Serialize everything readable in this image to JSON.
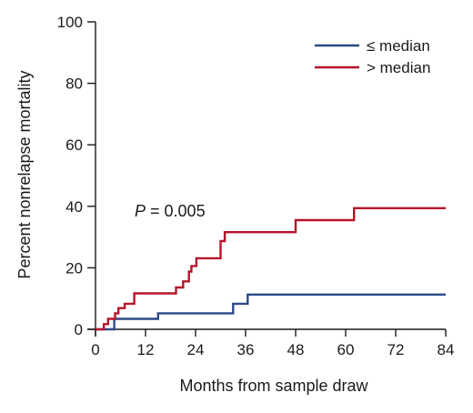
{
  "chart_data": {
    "type": "line",
    "step": true,
    "xlabel": "Months from sample draw",
    "ylabel": "Percent nonrelapse mortality",
    "xlim": [
      0,
      84
    ],
    "ylim": [
      0,
      100
    ],
    "xticks": [
      0,
      12,
      24,
      36,
      48,
      60,
      72,
      84
    ],
    "yticks": [
      0,
      20,
      40,
      60,
      80,
      100
    ],
    "grid": false,
    "legend_position": "top-right",
    "annotation": {
      "italic": "P",
      "rest": " = 0.005"
    },
    "series": [
      {
        "name": "≤ median",
        "color": "#2b4a86",
        "x": [
          0,
          4,
          4.5,
          15,
          33,
          36.5,
          84
        ],
        "y": [
          0,
          0,
          3.4,
          5.2,
          8.3,
          11.3,
          11.3
        ]
      },
      {
        "name": "> median",
        "color": "#b5152b",
        "x": [
          0,
          2,
          3,
          4.7,
          5.5,
          7,
          9.3,
          19.3,
          21,
          22.4,
          23,
          24.2,
          30,
          31,
          48,
          62,
          84
        ],
        "y": [
          0,
          1.7,
          3.4,
          5.2,
          6.9,
          8.3,
          11.7,
          13.6,
          15.6,
          18.8,
          20.6,
          23.1,
          28.7,
          31.6,
          35.5,
          39.4,
          39.4
        ]
      }
    ]
  }
}
